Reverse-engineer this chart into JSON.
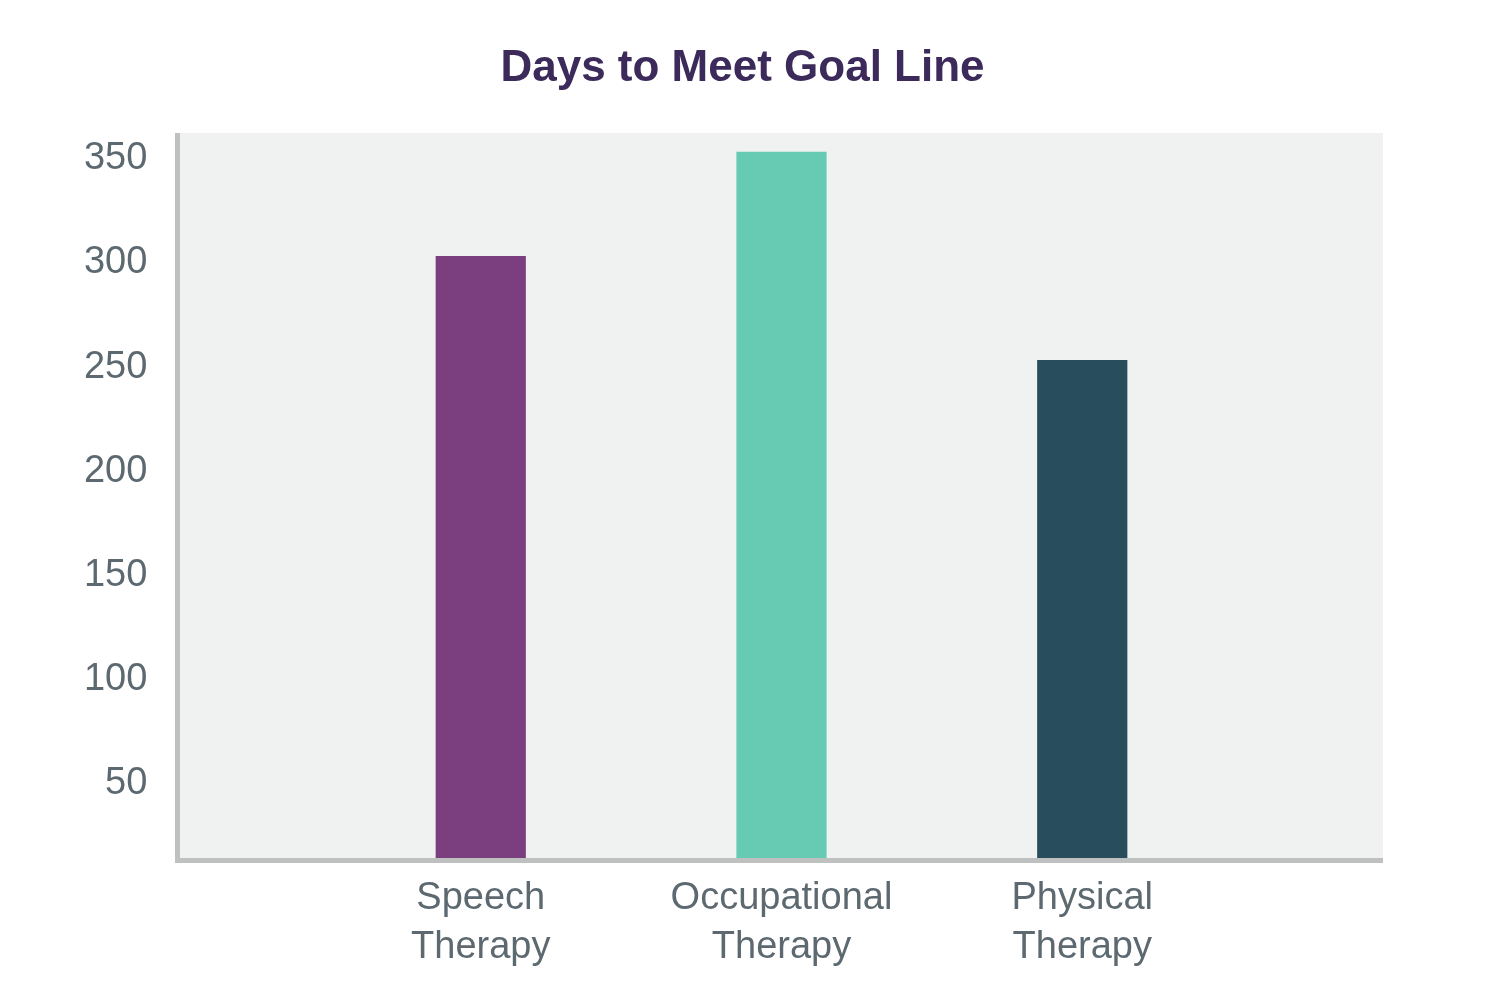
{
  "chart_data": {
    "type": "bar",
    "title": "Days to Meet Goal Line",
    "categories": [
      "Speech Therapy",
      "Occupational Therapy",
      "Physical Therapy"
    ],
    "values": [
      302,
      352,
      252
    ],
    "colors": [
      "#7b3f80",
      "#66cbb2",
      "#284d5c"
    ],
    "ylim": [
      13,
      361
    ],
    "yticks": [
      50,
      100,
      150,
      200,
      250,
      300,
      350
    ],
    "grid": false
  }
}
